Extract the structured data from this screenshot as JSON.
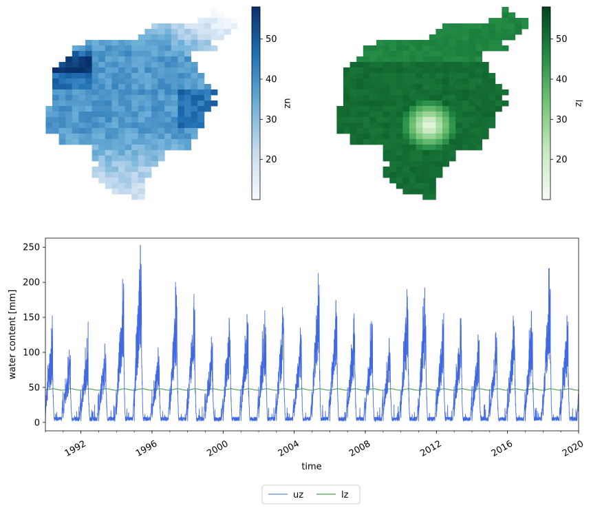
{
  "colors": {
    "uz_line": "#4169e1",
    "lz_line": "#228b22",
    "blues_low": "#f7fbff",
    "blues_high": "#08306b",
    "greens_low": "#f7fcf5",
    "greens_high": "#00441b"
  },
  "chart_data": [
    {
      "type": "heatmap",
      "name": "uz map",
      "colormap": "Blues",
      "colorbar_label": "uz",
      "colorbar_range": [
        10,
        58
      ],
      "colorbar_ticks": [
        "20",
        "30",
        "40",
        "50"
      ],
      "axes": "off"
    },
    {
      "type": "heatmap",
      "name": "lz map",
      "colormap": "Greens",
      "colorbar_label": "lz",
      "colorbar_range": [
        10,
        58
      ],
      "colorbar_ticks": [
        "20",
        "30",
        "40",
        "50"
      ],
      "axes": "off"
    },
    {
      "type": "line",
      "xlabel": "time",
      "ylabel": "water content [mm]",
      "xlim": [
        "1990-01-01",
        "2020-01-01"
      ],
      "ylim": [
        -12,
        263
      ],
      "x_ticks": [
        "1992",
        "1996",
        "2000",
        "2004",
        "2008",
        "2012",
        "2016",
        "2020"
      ],
      "y_ticks": [
        "0",
        "50",
        "100",
        "150",
        "200",
        "250"
      ],
      "legend": "bottom-center",
      "series": [
        {
          "name": "uz",
          "x": [
            "1990",
            "1991",
            "1992",
            "1993",
            "1994",
            "1995",
            "1996",
            "1997",
            "1998",
            "1999",
            "2000",
            "2001",
            "2002",
            "2003",
            "2004",
            "2005",
            "2006",
            "2007",
            "2008",
            "2009",
            "2010",
            "2011",
            "2012",
            "2013",
            "2014",
            "2015",
            "2016",
            "2017",
            "2018",
            "2019"
          ],
          "annual_peak": [
            132,
            102,
            118,
            110,
            203,
            251,
            105,
            191,
            162,
            120,
            147,
            152,
            158,
            162,
            133,
            211,
            172,
            147,
            142,
            118,
            188,
            190,
            145,
            147,
            123,
            127,
            143,
            157,
            211,
            150
          ],
          "baseline": 2
        },
        {
          "name": "lz",
          "baseline": 47,
          "amplitude": 1
        }
      ]
    }
  ]
}
